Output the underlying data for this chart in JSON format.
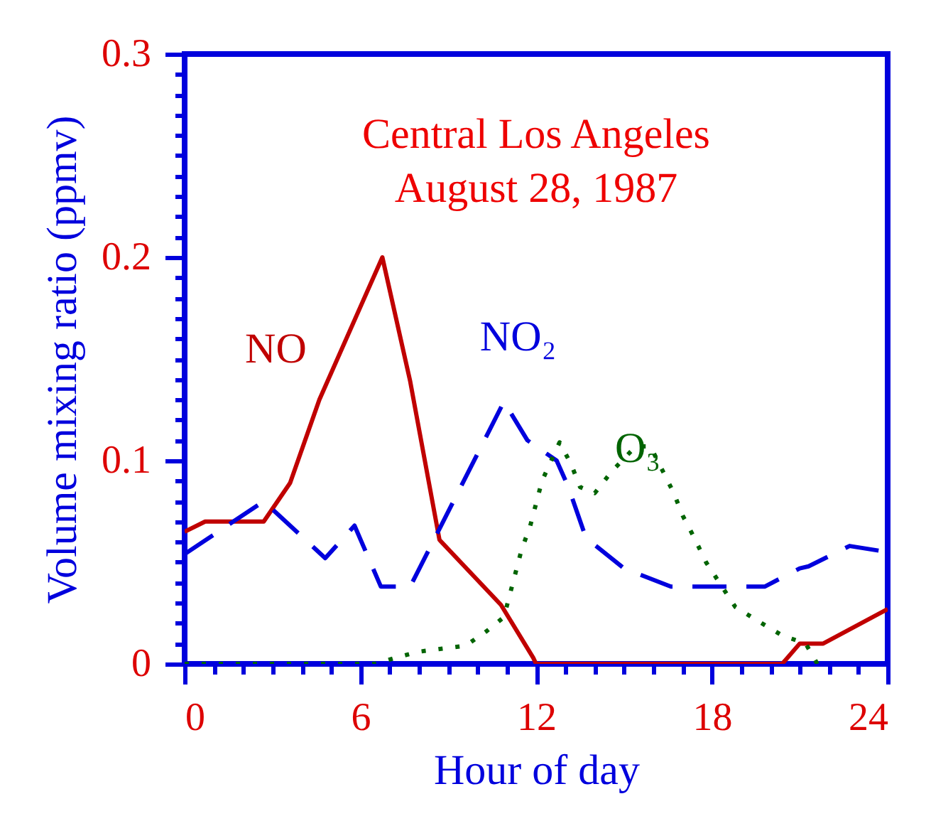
{
  "chart_data": {
    "type": "line",
    "annotations": [
      "Central Los Angeles",
      "August 28, 1987"
    ],
    "xlabel": "Hour of day",
    "ylabel": "Volume mixing ratio (ppmv)",
    "xlim": [
      0,
      24
    ],
    "ylim": [
      0,
      0.3
    ],
    "xticks": [
      0,
      {
        "value": 1,
        "label": null
      },
      {
        "value": 2,
        "label": null
      },
      {
        "value": 3,
        "label": null
      },
      {
        "value": 4,
        "label": null
      },
      {
        "value": 5,
        "label": null
      },
      6,
      {
        "value": 7,
        "label": null
      },
      {
        "value": 8,
        "label": null
      },
      {
        "value": 9,
        "label": null
      },
      {
        "value": 10,
        "label": null
      },
      {
        "value": 11,
        "label": null
      },
      12,
      {
        "value": 13,
        "label": null
      },
      {
        "value": 14,
        "label": null
      },
      {
        "value": 15,
        "label": null
      },
      {
        "value": 16,
        "label": null
      },
      {
        "value": 17,
        "label": null
      },
      18,
      {
        "value": 19,
        "label": null
      },
      {
        "value": 20,
        "label": null
      },
      {
        "value": 21,
        "label": null
      },
      {
        "value": 22,
        "label": null
      },
      {
        "value": 23,
        "label": null
      },
      24
    ],
    "yticks": [
      0,
      {
        "value": 0.01,
        "label": null
      },
      {
        "value": 0.02,
        "label": null
      },
      {
        "value": 0.03,
        "label": null
      },
      {
        "value": 0.04,
        "label": null
      },
      {
        "value": 0.05,
        "label": null
      },
      {
        "value": 0.06,
        "label": null
      },
      {
        "value": 0.07,
        "label": null
      },
      {
        "value": 0.08,
        "label": null
      },
      {
        "value": 0.09,
        "label": null
      },
      0.1,
      {
        "value": 0.11,
        "label": null
      },
      {
        "value": 0.12,
        "label": null
      },
      {
        "value": 0.13,
        "label": null
      },
      {
        "value": 0.14,
        "label": null
      },
      {
        "value": 0.15,
        "label": null
      },
      {
        "value": 0.16,
        "label": null
      },
      {
        "value": 0.17,
        "label": null
      },
      {
        "value": 0.18,
        "label": null
      },
      {
        "value": 0.19,
        "label": null
      },
      0.2,
      {
        "value": 0.21,
        "label": null
      },
      {
        "value": 0.22,
        "label": null
      },
      {
        "value": 0.23,
        "label": null
      },
      {
        "value": 0.24,
        "label": null
      },
      {
        "value": 0.25,
        "label": null
      },
      {
        "value": 0.26,
        "label": null
      },
      {
        "value": 0.27,
        "label": null
      },
      {
        "value": 0.28,
        "label": null
      },
      {
        "value": 0.29,
        "label": null
      },
      0.3
    ],
    "grid": false,
    "marker": "none",
    "series": [
      {
        "name": "NO",
        "color": "#c00000",
        "line_style": "solid",
        "x": [
          0,
          0.7,
          2.7,
          3.6,
          4.6,
          6.75,
          7.7,
          8.7,
          10.8,
          11.9,
          12,
          20,
          20.4,
          21,
          21.8,
          24
        ],
        "values": [
          0.065,
          0.07,
          0.07,
          0.089,
          0.13,
          0.2,
          0.139,
          0.061,
          0.029,
          0.003,
          0,
          0,
          0,
          0.01,
          0.01,
          0.027
        ]
      },
      {
        "name": "NO₂",
        "color": "#0000dd",
        "line_style": "dashed",
        "x": [
          0,
          2.7,
          4.8,
          5.8,
          6.7,
          7.7,
          10.9,
          11.7,
          12.7,
          13.1,
          13.7,
          15,
          16.6,
          18.2,
          19.8,
          21,
          21.3,
          22.7,
          24
        ],
        "values": [
          0.054,
          0.08,
          0.052,
          0.068,
          0.038,
          0.038,
          0.129,
          0.11,
          0.1,
          0.087,
          0.062,
          0.047,
          0.038,
          0.038,
          0.038,
          0.047,
          0.048,
          0.058,
          0.055
        ]
      },
      {
        "name": "O₃",
        "color": "#006400",
        "line_style": "dotted",
        "x": [
          0,
          6.5,
          7.2,
          8,
          9.6,
          10.3,
          10.9,
          11.5,
          11.8,
          12.2,
          12.8,
          13.2,
          13.5,
          14,
          14.6,
          15.4,
          15.9,
          16.7,
          17,
          17.4,
          17.8,
          18.3,
          18.8,
          19.7,
          20.4,
          21.2,
          21.6
        ],
        "values": [
          0,
          0,
          0.003,
          0.006,
          0.009,
          0.016,
          0.023,
          0.056,
          0.068,
          0.09,
          0.109,
          0.098,
          0.087,
          0.084,
          0.095,
          0.107,
          0.107,
          0.084,
          0.073,
          0.062,
          0.05,
          0.039,
          0.028,
          0.02,
          0.014,
          0.01,
          0
        ]
      }
    ]
  }
}
